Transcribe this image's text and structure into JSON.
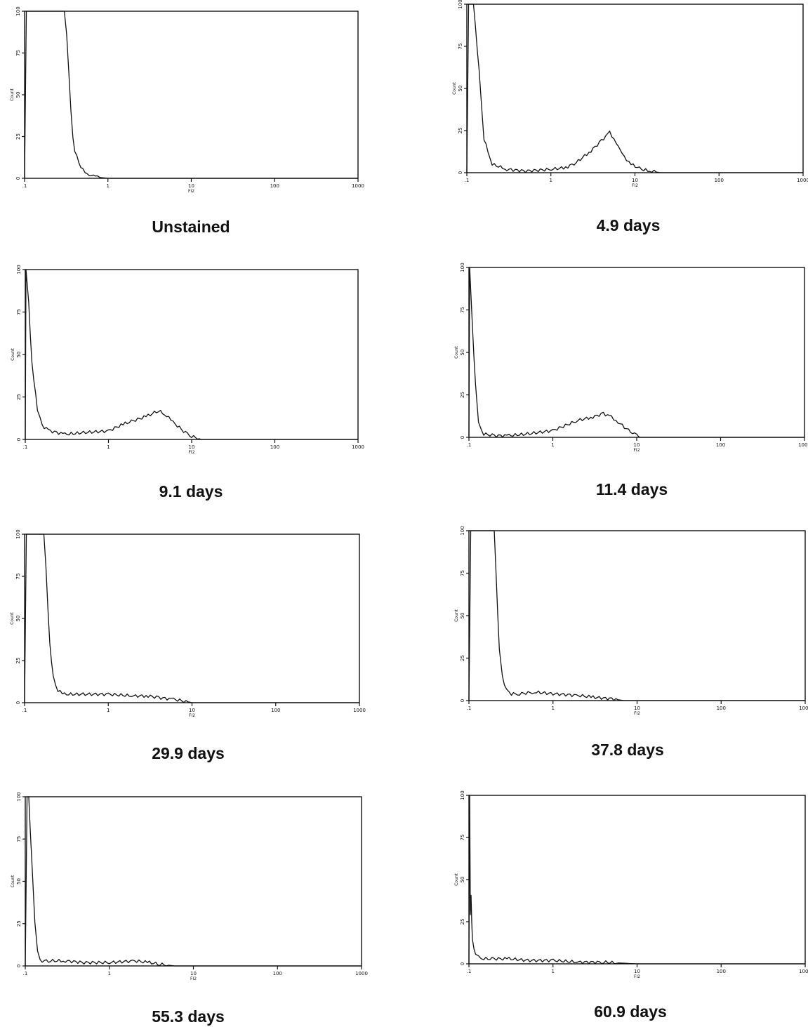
{
  "chart_data": [
    {
      "type": "line",
      "title": "Unstained",
      "xlabel": "FI2",
      "ylabel": "Count",
      "x_scale": "log",
      "xlim": [
        0.1,
        1000
      ],
      "ylim": [
        0,
        100
      ],
      "x_ticks": [
        ".1",
        "1",
        "10",
        "100",
        "1000"
      ],
      "y_ticks": [
        "0",
        "25",
        "50",
        "75",
        "100"
      ],
      "grid": false,
      "series": [
        {
          "x": [
            0.1,
            0.105,
            0.11,
            0.3,
            0.32,
            0.34,
            0.36,
            0.38,
            0.4,
            0.45,
            0.5,
            0.6,
            0.7,
            0.8,
            1.0,
            10,
            1000
          ],
          "values": [
            0,
            100,
            100,
            100,
            85,
            62,
            40,
            25,
            17,
            9,
            5,
            2,
            1,
            0.5,
            0,
            0,
            0
          ]
        }
      ]
    },
    {
      "type": "line",
      "title": "4.9 days",
      "xlabel": "FI2",
      "ylabel": "Count",
      "x_scale": "log",
      "xlim": [
        0.1,
        1000
      ],
      "ylim": [
        0,
        100
      ],
      "x_ticks": [
        ".1",
        "1",
        "10",
        "100",
        "1000"
      ],
      "y_ticks": [
        "0",
        "25",
        "50",
        "75",
        "100"
      ],
      "grid": false,
      "series": [
        {
          "x": [
            0.1,
            0.105,
            0.12,
            0.14,
            0.16,
            0.2,
            0.3,
            0.5,
            1.0,
            1.5,
            2.0,
            3.0,
            4.0,
            5.0,
            6.0,
            7.0,
            9.0,
            12,
            15,
            20,
            100,
            1000
          ],
          "values": [
            0,
            100,
            100,
            60,
            20,
            5,
            2,
            1,
            2,
            3,
            6,
            13,
            19,
            24,
            18,
            11,
            5,
            2,
            1,
            0,
            0,
            0
          ]
        }
      ]
    },
    {
      "type": "line",
      "title": "9.1 days",
      "xlabel": "FI2",
      "ylabel": "Count",
      "x_scale": "log",
      "xlim": [
        0.1,
        1000
      ],
      "ylim": [
        0,
        100
      ],
      "x_ticks": [
        ".1",
        "1",
        "10",
        "100",
        "1000"
      ],
      "y_ticks": [
        "0",
        "25",
        "50",
        "75",
        "100"
      ],
      "grid": false,
      "series": [
        {
          "x": [
            0.1,
            0.102,
            0.11,
            0.12,
            0.14,
            0.16,
            0.2,
            0.3,
            0.5,
            1.0,
            1.5,
            2.0,
            3.0,
            4.0,
            5.0,
            6.0,
            8.0,
            10,
            13,
            100,
            1000
          ],
          "values": [
            0,
            100,
            80,
            45,
            18,
            8,
            5,
            3,
            4,
            5,
            9,
            11,
            14,
            17,
            14,
            10,
            5,
            2,
            0,
            0,
            0
          ]
        }
      ]
    },
    {
      "type": "line",
      "title": "11.4 days",
      "xlabel": "FI2",
      "ylabel": "Count",
      "x_scale": "log",
      "xlim": [
        0.1,
        1000
      ],
      "ylim": [
        0,
        100
      ],
      "x_ticks": [
        ".1",
        "1",
        "10",
        "100",
        "1000"
      ],
      "y_ticks": [
        "0",
        "25",
        "50",
        "75",
        "100"
      ],
      "grid": false,
      "series": [
        {
          "x": [
            0.1,
            0.102,
            0.11,
            0.12,
            0.13,
            0.15,
            0.2,
            0.3,
            0.5,
            1.0,
            2.0,
            3.0,
            4.0,
            5.0,
            6.0,
            8.0,
            10,
            11,
            100,
            1000
          ],
          "values": [
            0,
            100,
            65,
            30,
            8,
            2,
            1,
            1,
            2,
            4,
            10,
            12,
            14,
            12,
            9,
            4,
            1,
            0,
            0,
            0
          ]
        }
      ]
    },
    {
      "type": "line",
      "title": "29.9 days",
      "xlabel": "FI2",
      "ylabel": "Count",
      "x_scale": "log",
      "xlim": [
        0.1,
        1000
      ],
      "ylim": [
        0,
        100
      ],
      "x_ticks": [
        ".1",
        "1",
        "10",
        "100",
        "1000"
      ],
      "y_ticks": [
        "0",
        "25",
        "50",
        "75",
        "100"
      ],
      "grid": false,
      "series": [
        {
          "x": [
            0.1,
            0.105,
            0.12,
            0.17,
            0.18,
            0.19,
            0.2,
            0.22,
            0.25,
            0.3,
            0.5,
            1.0,
            2.0,
            3.0,
            4.0,
            6.0,
            8.0,
            10,
            100,
            1000
          ],
          "values": [
            0,
            100,
            100,
            100,
            80,
            55,
            35,
            15,
            7,
            5,
            5,
            5,
            4,
            4,
            3,
            2,
            1,
            0,
            0,
            0
          ]
        }
      ]
    },
    {
      "type": "line",
      "title": "37.8 days",
      "xlabel": "FI2",
      "ylabel": "Count",
      "x_scale": "log",
      "xlim": [
        0.1,
        1000
      ],
      "ylim": [
        0,
        100
      ],
      "x_ticks": [
        ".1",
        "1",
        "10",
        "100",
        "1000"
      ],
      "y_ticks": [
        "0",
        "25",
        "50",
        "75",
        "100"
      ],
      "grid": false,
      "series": [
        {
          "x": [
            0.1,
            0.105,
            0.12,
            0.2,
            0.21,
            0.22,
            0.23,
            0.25,
            0.28,
            0.32,
            0.4,
            0.6,
            1.0,
            2.0,
            3.0,
            5.0,
            7.0,
            100,
            1000
          ],
          "values": [
            0,
            100,
            100,
            100,
            75,
            50,
            30,
            14,
            6,
            4,
            4,
            5,
            4,
            3,
            2,
            1,
            0,
            0,
            0
          ]
        }
      ]
    },
    {
      "type": "line",
      "title": "55.3 days",
      "xlabel": "FI2",
      "ylabel": "Count",
      "x_scale": "log",
      "xlim": [
        0.1,
        1000
      ],
      "ylim": [
        0,
        100
      ],
      "x_ticks": [
        ".1",
        "1",
        "10",
        "100",
        "1000"
      ],
      "y_ticks": [
        "0",
        "25",
        "50",
        "75",
        "100"
      ],
      "grid": false,
      "series": [
        {
          "x": [
            0.1,
            0.105,
            0.11,
            0.12,
            0.13,
            0.14,
            0.15,
            0.2,
            0.3,
            0.5,
            1.0,
            2.0,
            3.0,
            4.0,
            6.0,
            8.0,
            100,
            1000
          ],
          "values": [
            0,
            100,
            100,
            60,
            25,
            8,
            3,
            3,
            3,
            2,
            2,
            3,
            2,
            1,
            0,
            0,
            0,
            0
          ]
        }
      ]
    },
    {
      "type": "line",
      "title": "60.9 days",
      "xlabel": "FI2",
      "ylabel": "Count",
      "x_scale": "log",
      "xlim": [
        0.1,
        1000
      ],
      "ylim": [
        0,
        100
      ],
      "x_ticks": [
        ".1",
        "1",
        "10",
        "100",
        "1000"
      ],
      "y_ticks": [
        "0",
        "25",
        "50",
        "75",
        "100"
      ],
      "grid": false,
      "series": [
        {
          "x": [
            0.1,
            0.102,
            0.104,
            0.106,
            0.108,
            0.11,
            0.115,
            0.12,
            0.13,
            0.15,
            0.2,
            0.3,
            0.5,
            1.0,
            2.0,
            4.0,
            6.0,
            10,
            100,
            1000
          ],
          "values": [
            0,
            100,
            30,
            40,
            25,
            15,
            8,
            5,
            4,
            3,
            3,
            3,
            2,
            2,
            1,
            1,
            0.5,
            0,
            0,
            0
          ]
        }
      ]
    }
  ]
}
